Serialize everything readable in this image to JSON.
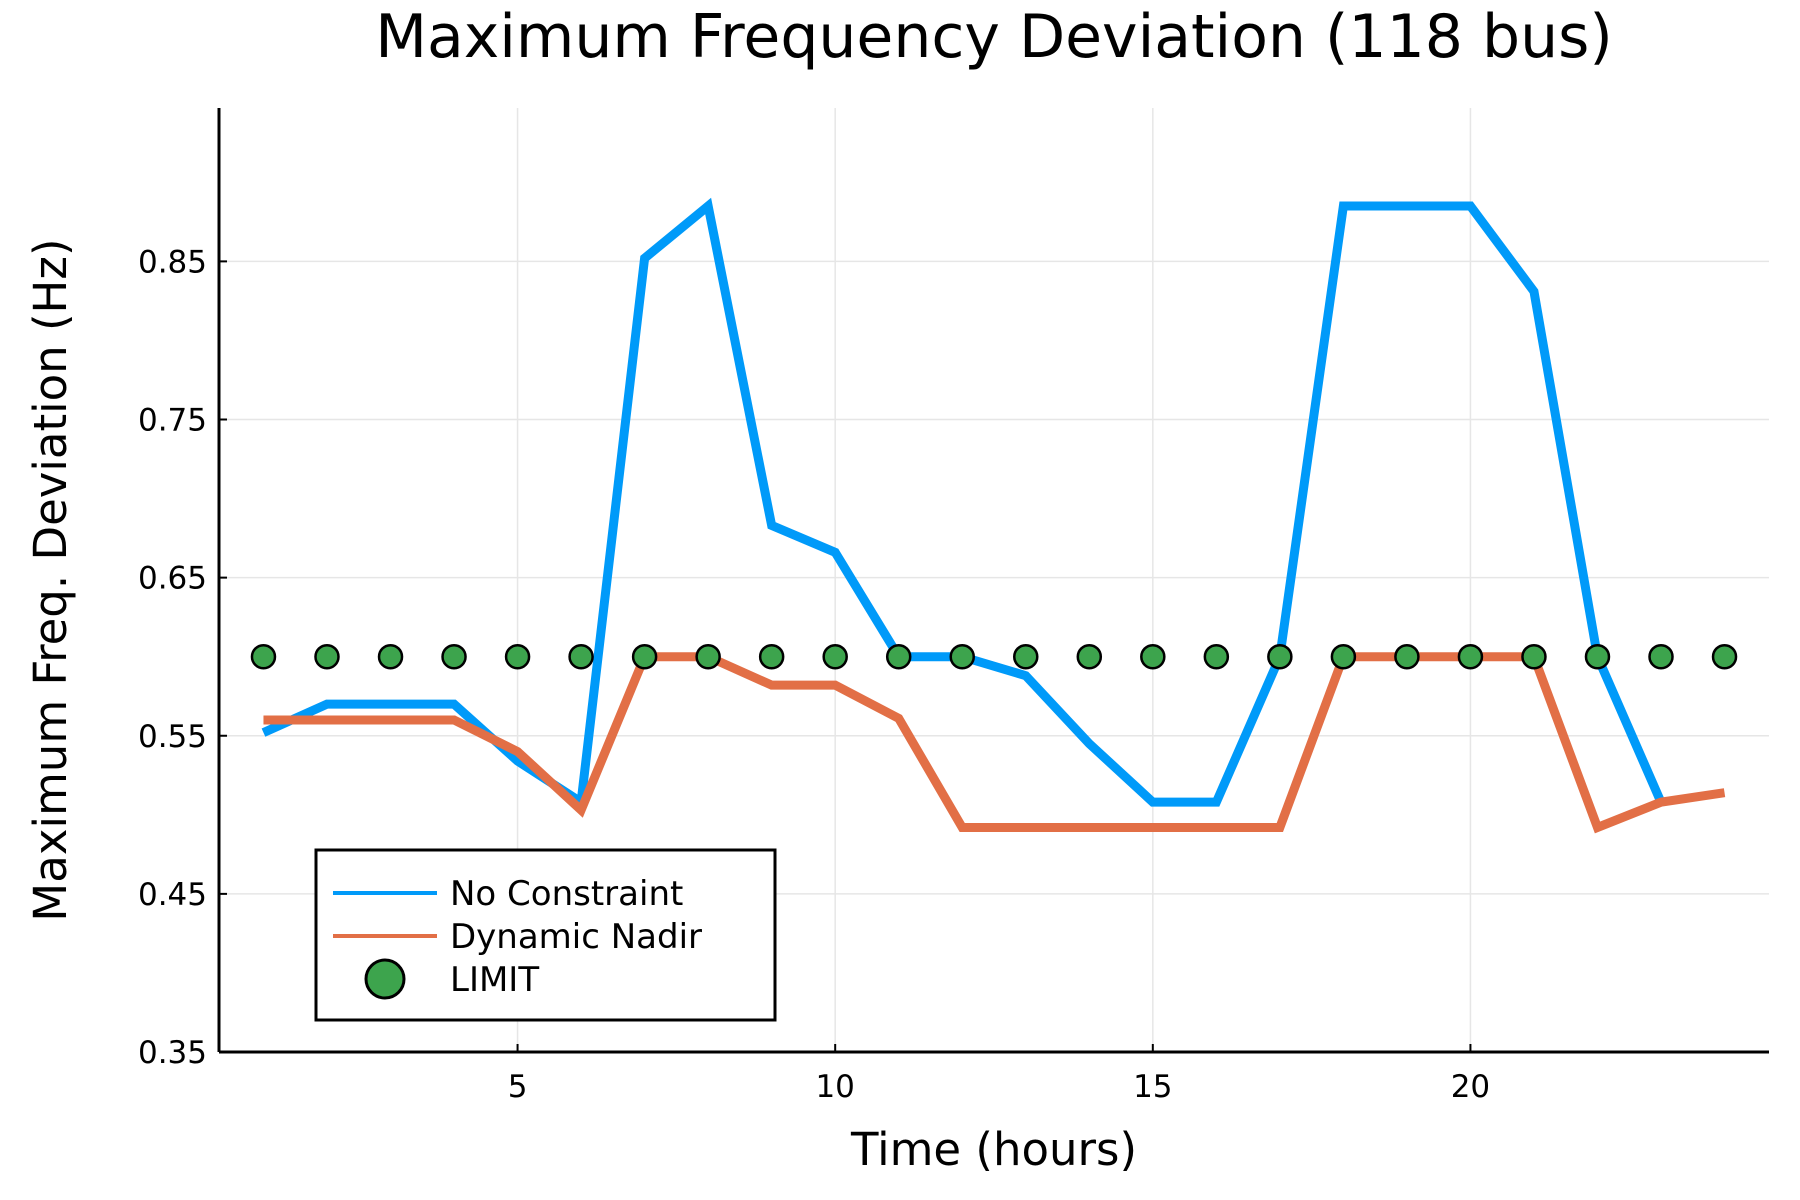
{
  "chart_data": {
    "type": "line",
    "title": "Maximum Frequency Deviation (118 bus)",
    "xlabel": "Time (hours)",
    "ylabel": "Maximum Freq. Deviation (Hz)",
    "xlim": [
      0.3,
      24.7
    ],
    "ylim": [
      0.35,
      0.947
    ],
    "xticks": [
      5,
      10,
      15,
      20
    ],
    "yticks": [
      0.35,
      0.45,
      0.55,
      0.65,
      0.75,
      0.85
    ],
    "ytick_labels": [
      "0.35",
      "0.45",
      "0.55",
      "0.65",
      "0.75",
      "0.85"
    ],
    "xtick_labels": [
      "5",
      "10",
      "15",
      "20"
    ],
    "grid": true,
    "legend_position": "bottom-left",
    "x": [
      1,
      2,
      3,
      4,
      5,
      6,
      7,
      8,
      9,
      10,
      11,
      12,
      13,
      14,
      15,
      16,
      17,
      18,
      19,
      20,
      21,
      22,
      23,
      24
    ],
    "series": [
      {
        "name": "No Constraint",
        "kind": "line",
        "color": "#009af9",
        "values": [
          0.552,
          0.57,
          0.57,
          0.57,
          0.534,
          0.508,
          0.852,
          0.885,
          0.683,
          0.666,
          0.6,
          0.6,
          0.588,
          0.545,
          0.508,
          0.508,
          0.6,
          0.885,
          0.885,
          0.885,
          0.831,
          0.6,
          0.508,
          null
        ]
      },
      {
        "name": "Dynamic Nadir",
        "kind": "line",
        "color": "#e26f46",
        "values": [
          0.56,
          0.56,
          0.56,
          0.56,
          0.54,
          0.503,
          0.6,
          0.6,
          0.582,
          0.582,
          0.561,
          0.492,
          0.492,
          0.492,
          0.492,
          0.492,
          0.492,
          0.6,
          0.6,
          0.6,
          0.6,
          0.492,
          0.508,
          0.514
        ]
      },
      {
        "name": "LIMIT",
        "kind": "scatter",
        "color": "#3da44d",
        "values": [
          0.6,
          0.6,
          0.6,
          0.6,
          0.6,
          0.6,
          0.6,
          0.6,
          0.6,
          0.6,
          0.6,
          0.6,
          0.6,
          0.6,
          0.6,
          0.6,
          0.6,
          0.6,
          0.6,
          0.6,
          0.6,
          0.6,
          0.6,
          0.6
        ]
      }
    ]
  }
}
